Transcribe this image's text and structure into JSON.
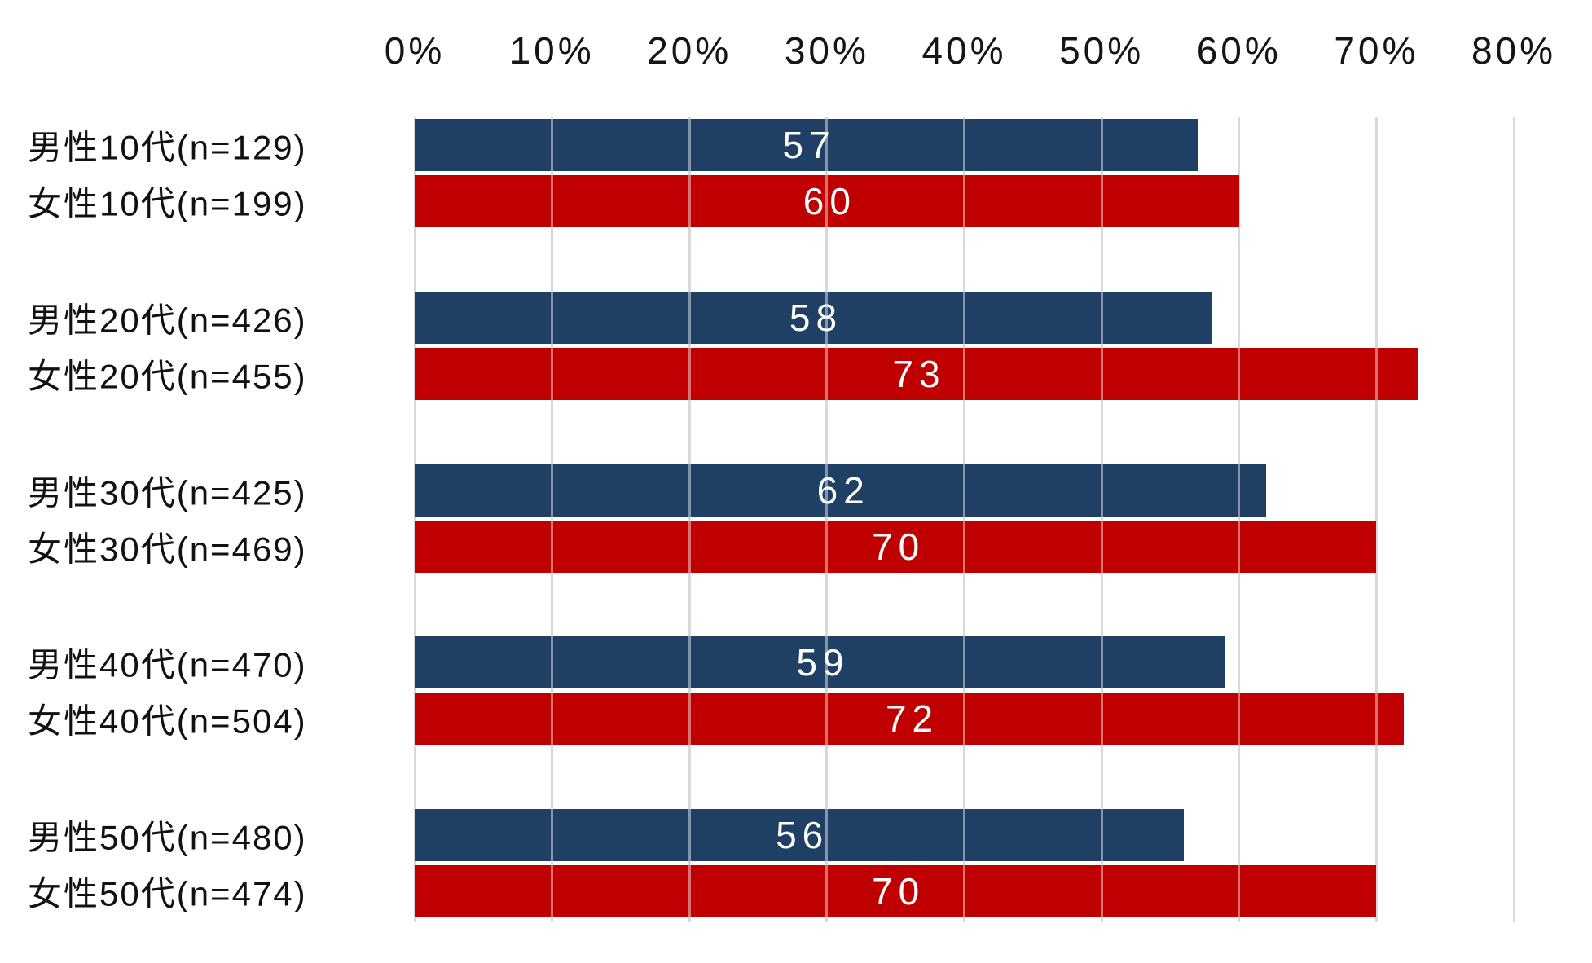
{
  "chart_data": {
    "type": "bar",
    "orientation": "horizontal",
    "title": "",
    "xlabel": "",
    "ylabel": "",
    "grid": true,
    "legend_position": "none",
    "x_axis": {
      "ticks": [
        "0%",
        "10%",
        "20%",
        "30%",
        "40%",
        "50%",
        "60%",
        "70%",
        "80%"
      ],
      "min": 0,
      "max": 80,
      "unit": "%"
    },
    "categories": [
      "10代",
      "20代",
      "30代",
      "40代",
      "50代"
    ],
    "series": [
      {
        "name": "男性",
        "color": "#1F4064",
        "labels": [
          "男性10代(n=129)",
          "男性20代(n=426)",
          "男性30代(n=425)",
          "男性40代(n=470)",
          "男性50代(n=480)"
        ],
        "values": [
          57,
          58,
          62,
          59,
          56
        ]
      },
      {
        "name": "女性",
        "color": "#C00000",
        "labels": [
          "女性10代(n=199)",
          "女性20代(n=455)",
          "女性30代(n=469)",
          "女性40代(n=504)",
          "女性50代(n=474)"
        ],
        "values": [
          60,
          73,
          70,
          72,
          70
        ]
      }
    ],
    "gridline_color": "#D9D9D9",
    "value_label_color": "#FFFFFF",
    "tick_label_color": "#151515"
  }
}
